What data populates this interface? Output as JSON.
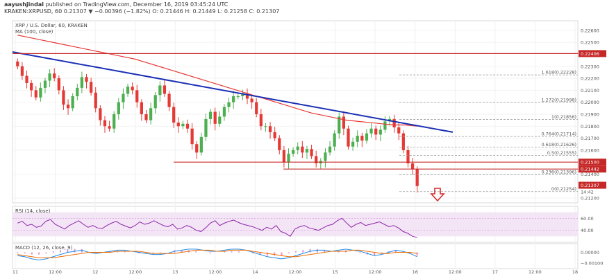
{
  "header": {
    "author": "aayushjindal",
    "published": "published on TradingView.com, December 16, 2019 03:45:24 UTC",
    "symbol": "KRAKEN:XRPUSD, 60",
    "quote": "0.21307 ▼ −0.00396 (−1.82%) O: 0.21446 H: 0.21449 L: 0.21258 C: 0.21307"
  },
  "panes": {
    "price_title": "XRP / U.S. Dollar, 60, KRAKEN",
    "ma_label": "MA (100, close)",
    "rsi_label": "RSI (14, close)",
    "macd_label": "MACD (12, 26, close, 9)"
  },
  "colors": {
    "up": "#26a69a",
    "down": "#ef5350",
    "candle_up": "#4caf50",
    "candle_down": "#e53935",
    "ma": "#e53935",
    "trendline": "#1a2fb5",
    "support": "#c62828",
    "rsi_line": "#8e24aa",
    "rsi_band": "#f3e5f5",
    "macd_line": "#1e88e5",
    "signal_line": "#ef6c00",
    "fib": "#9e9e9e",
    "arrow": "#d32f2f",
    "last_price_bg": "#c62828"
  },
  "chart_data": [
    {
      "type": "candlestick",
      "pane": "price",
      "title": "XRP / U.S. Dollar, 60, KRAKEN",
      "x_ticks": [
        "11",
        "12:00",
        "12",
        "12:00",
        "13",
        "12:00",
        "14",
        "12:00",
        "15",
        "12:00",
        "16",
        "12:00",
        "17",
        "12:00",
        "18"
      ],
      "y_ticks": [
        0.226,
        0.225,
        0.223,
        0.222,
        0.221,
        0.22,
        0.219,
        0.218,
        0.217,
        0.216,
        0.214,
        0.212
      ],
      "ylim": [
        0.2116,
        0.2268
      ],
      "closes": [
        0.223,
        0.2222,
        0.2216,
        0.221,
        0.2204,
        0.2212,
        0.2218,
        0.2224,
        0.222,
        0.221,
        0.2198,
        0.2195,
        0.2205,
        0.2212,
        0.2221,
        0.2217,
        0.2208,
        0.2195,
        0.2185,
        0.218,
        0.2178,
        0.219,
        0.22,
        0.2207,
        0.2213,
        0.221,
        0.22,
        0.219,
        0.2185,
        0.2195,
        0.2206,
        0.2214,
        0.2207,
        0.2196,
        0.2183,
        0.218,
        0.2182,
        0.2178,
        0.2165,
        0.2158,
        0.2171,
        0.2186,
        0.2192,
        0.2182,
        0.2188,
        0.2196,
        0.22,
        0.2205,
        0.2205,
        0.2207,
        0.2203,
        0.22,
        0.219,
        0.218,
        0.218,
        0.2175,
        0.217,
        0.216,
        0.215,
        0.2157,
        0.216,
        0.2163,
        0.2158,
        0.2161,
        0.2155,
        0.2149,
        0.2151,
        0.2158,
        0.2163,
        0.2174,
        0.2188,
        0.2178,
        0.2163,
        0.2167,
        0.2172,
        0.2168,
        0.2174,
        0.2178,
        0.2173,
        0.2177,
        0.2184,
        0.2186,
        0.2179,
        0.2174,
        0.216,
        0.2149,
        0.2144,
        0.213
      ],
      "candles_up_down": "see closes (green when close > previous close)",
      "ma_label": "MA (100, close)",
      "ma": [
        0.2256,
        0.2254,
        0.2252,
        0.225,
        0.2248,
        0.2246,
        0.2244,
        0.2242,
        0.224,
        0.2238,
        0.2236,
        0.2233,
        0.223,
        0.2227,
        0.2224,
        0.2221,
        0.2218,
        0.2215,
        0.2212,
        0.2209,
        0.2206,
        0.2203,
        0.22,
        0.2197,
        0.2194,
        0.2191,
        0.2189,
        0.2187,
        0.2185,
        0.2184,
        0.2183,
        0.2182,
        0.2181,
        0.2181,
        0.218
      ],
      "last_price": "0.21307",
      "countdown": "14:42",
      "horizontal_levels": [
        {
          "value": "0.22406",
          "label": "0.22406"
        },
        {
          "value": "0.21500",
          "label": "0.21500"
        },
        {
          "value": "0.21442",
          "label": "0.21442"
        }
      ],
      "fibonacci": [
        {
          "label": "1.618(0.22228)",
          "value": 0.22228
        },
        {
          "label": "1.272(0.21998)",
          "value": 0.21998
        },
        {
          "label": "1(0.21856)",
          "value": 0.21856
        },
        {
          "label": "0.764(0.21714)",
          "value": 0.21714
        },
        {
          "label": "0.618(0.21626)",
          "value": 0.21626
        },
        {
          "label": "0.5(0.21555)",
          "value": 0.21555
        },
        {
          "label": "0.236(0.21396)",
          "value": 0.21396
        },
        {
          "label": "0(0.21254)",
          "value": 0.21254
        }
      ],
      "trendline": {
        "from": [
          0,
          0.2242
        ],
        "to": [
          1,
          0.2175
        ]
      }
    },
    {
      "type": "line",
      "pane": "rsi",
      "title": "RSI (14, close)",
      "y_ticks": [
        60.0,
        40.0
      ],
      "ylim": [
        20,
        80
      ],
      "values": [
        52,
        55,
        48,
        50,
        45,
        47,
        55,
        58,
        50,
        46,
        42,
        48,
        52,
        56,
        50,
        45,
        48,
        44,
        43,
        48,
        52,
        55,
        50,
        47,
        44,
        48,
        54,
        50,
        52,
        56,
        52,
        48,
        46,
        50,
        42,
        44,
        48,
        45,
        40,
        38,
        44,
        52,
        56,
        48,
        52,
        55,
        57,
        53,
        50,
        48,
        46,
        43,
        40,
        45,
        42,
        48,
        38,
        35,
        30,
        42,
        46,
        48,
        44,
        42,
        40,
        44,
        48,
        50,
        56,
        60,
        52,
        45,
        50,
        53,
        48,
        50,
        52,
        54,
        50,
        46,
        48,
        44,
        38,
        35,
        30,
        28
      ]
    },
    {
      "type": "line",
      "pane": "macd",
      "title": "MACD (12, 26, close, 9)",
      "y_ticks": [
        "0.00000",
        "−0.00100"
      ],
      "ylim": [
        -0.0015,
        0.0008
      ],
      "macd": [
        -0.0003,
        -0.0004,
        -0.0006,
        -0.0007,
        -0.0006,
        -0.0004,
        -0.0002,
        0.0,
        0.0001,
        0.0002,
        0.0,
        -0.0001,
        0.0,
        0.0001,
        0.0002,
        0.0002,
        0.0001,
        0.0,
        -0.0001,
        -0.0002,
        -0.0002,
        -0.0001,
        0.0001,
        0.0002,
        0.0003,
        0.0003,
        0.0002,
        0.0001,
        0.0001,
        0.0002,
        0.0003,
        0.0003,
        0.0002,
        0.0,
        -0.0002,
        -0.0004,
        -0.0005,
        -0.0006,
        -0.0005,
        -0.0003,
        -0.0001,
        0.0001,
        0.0002,
        0.0002,
        0.0001,
        0.0002,
        0.0003,
        0.0002,
        0.0001,
        -0.0001,
        -0.0003,
        -0.0002,
        0.0,
        0.0002,
        0.0001,
        -0.0001,
        -0.0004
      ],
      "signal": [
        -0.0002,
        -0.0003,
        -0.0004,
        -0.0005,
        -0.0005,
        -0.0005,
        -0.0004,
        -0.0003,
        -0.0002,
        -0.0001,
        0.0,
        0.0,
        0.0,
        0.0,
        0.0001,
        0.0001,
        0.0001,
        0.0001,
        0.0,
        -0.0001,
        -0.0001,
        -0.0001,
        -0.0001,
        0.0,
        0.0001,
        0.0002,
        0.0002,
        0.0002,
        0.0001,
        0.0001,
        0.0002,
        0.0002,
        0.0002,
        0.0001,
        0.0,
        -0.0001,
        -0.0002,
        -0.0003,
        -0.0004,
        -0.0004,
        -0.0003,
        -0.0002,
        -0.0001,
        0.0,
        0.0001,
        0.0001,
        0.0001,
        0.0002,
        0.0002,
        0.0001,
        0.0,
        -0.0001,
        -0.0001,
        0.0,
        0.0,
        0.0,
        -0.0001
      ]
    }
  ]
}
